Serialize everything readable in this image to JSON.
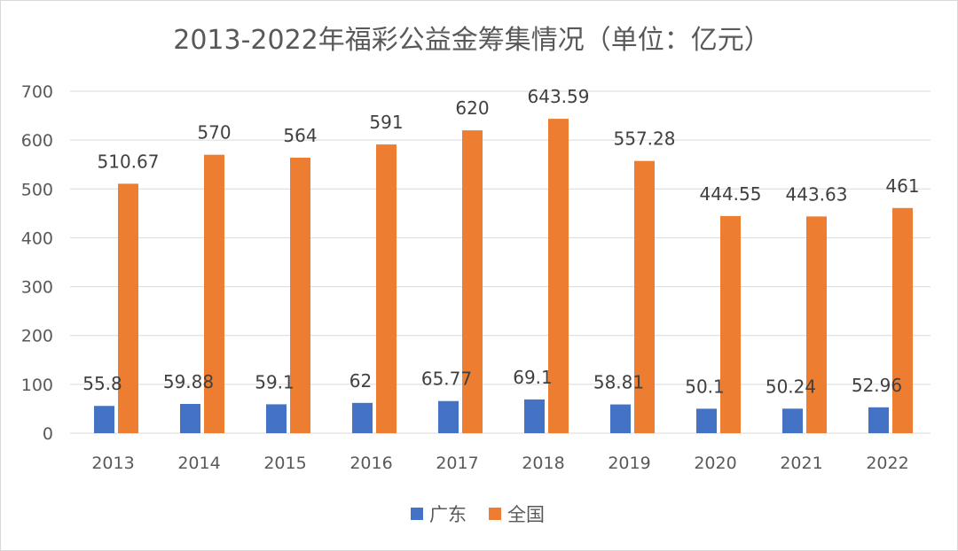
{
  "chart_data": {
    "type": "bar",
    "title": "2013-2022年福彩公益金筹集情况（单位：亿元）",
    "xlabel": "",
    "ylabel": "",
    "categories": [
      "2013",
      "2014",
      "2015",
      "2016",
      "2017",
      "2018",
      "2019",
      "2020",
      "2021",
      "2022"
    ],
    "series": [
      {
        "name": "广东",
        "color": "#4472C4",
        "values": [
          55.8,
          59.88,
          59.1,
          62,
          65.77,
          69.1,
          58.81,
          50.1,
          50.24,
          52.96
        ]
      },
      {
        "name": "全国",
        "color": "#ED7D31",
        "values": [
          510.67,
          570,
          564,
          591,
          620,
          643.59,
          557.28,
          444.55,
          443.63,
          461
        ]
      }
    ],
    "ylim": [
      0,
      700
    ],
    "yticks": [
      0,
      100,
      200,
      300,
      400,
      500,
      600,
      700
    ],
    "grid": true,
    "legend_position": "bottom",
    "data_labels": true
  }
}
